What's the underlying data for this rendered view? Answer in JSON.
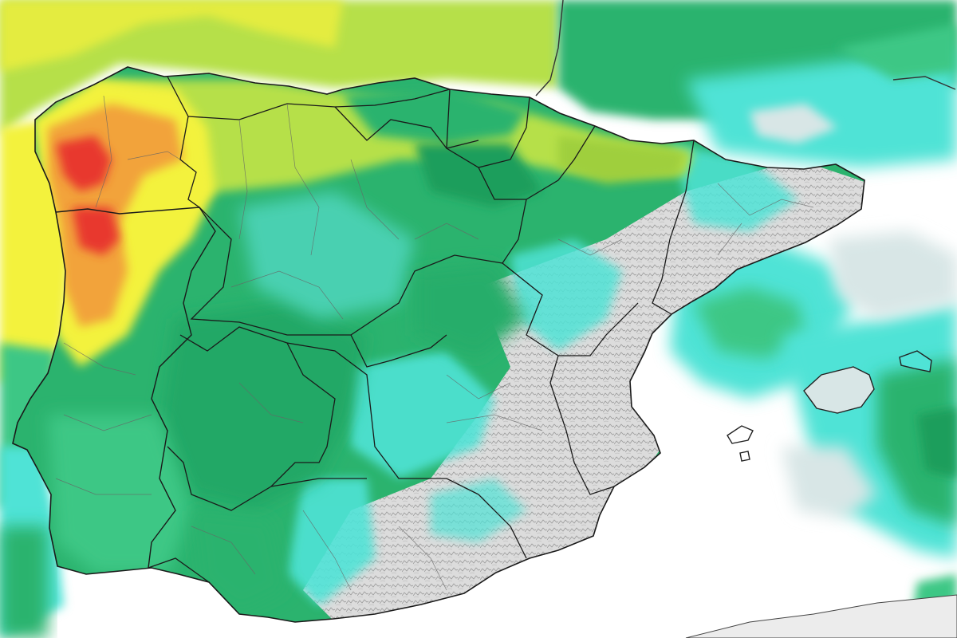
{
  "map": {
    "colors": {
      "background": "#ffffff",
      "sea_precip_light": "#d8e6e6",
      "cyan": "#4fe3d6",
      "light_green": "#3cc785",
      "green": "#2bb36e",
      "dark_green": "#1a9e5c",
      "yellow_green": "#b6e04a",
      "yellow": "#f3f23c",
      "orange": "#f2a33b",
      "red": "#e8392e",
      "land_gray": "#d9d9d9",
      "border_major": "#222222",
      "border_minor": "#666666"
    },
    "layers": {
      "precipitation_field": "shaded",
      "relief_hillshade": "gray",
      "coastlines": "black",
      "regional_borders": "black",
      "provincial_borders": "gray"
    }
  }
}
